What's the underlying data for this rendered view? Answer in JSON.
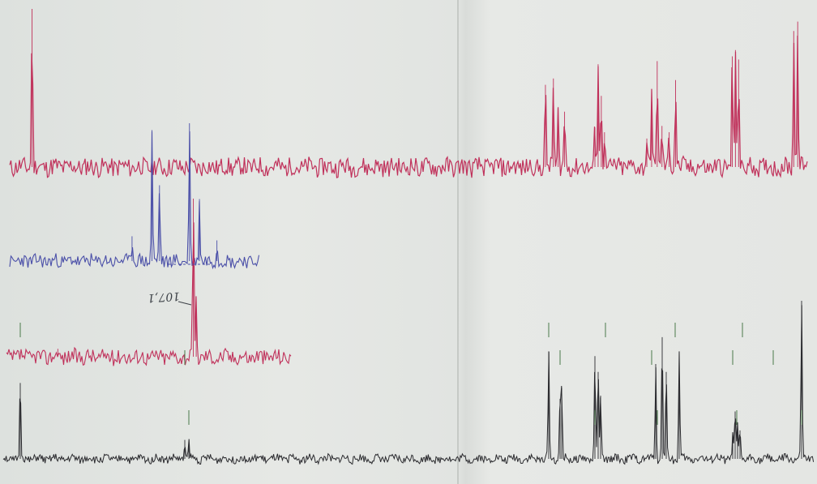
{
  "chart_data": [
    {
      "type": "line",
      "name_ref": "spectrum-top",
      "color": "#c0305a",
      "baseline": 0.0,
      "noise": 0.06,
      "x_domain": [
        0,
        1
      ],
      "peaks": [
        {
          "x": 0.028,
          "h": 1.0
        },
        {
          "x": 0.671,
          "h": 0.52
        },
        {
          "x": 0.681,
          "h": 0.56
        },
        {
          "x": 0.687,
          "h": 0.38
        },
        {
          "x": 0.695,
          "h": 0.35
        },
        {
          "x": 0.733,
          "h": 0.25
        },
        {
          "x": 0.737,
          "h": 0.65
        },
        {
          "x": 0.741,
          "h": 0.45
        },
        {
          "x": 0.745,
          "h": 0.22
        },
        {
          "x": 0.798,
          "h": 0.18
        },
        {
          "x": 0.804,
          "h": 0.49
        },
        {
          "x": 0.811,
          "h": 0.67
        },
        {
          "x": 0.817,
          "h": 0.26
        },
        {
          "x": 0.826,
          "h": 0.22
        },
        {
          "x": 0.834,
          "h": 0.55
        },
        {
          "x": 0.905,
          "h": 0.7
        },
        {
          "x": 0.909,
          "h": 0.74
        },
        {
          "x": 0.913,
          "h": 0.68
        },
        {
          "x": 0.982,
          "h": 0.86
        },
        {
          "x": 0.987,
          "h": 0.92
        }
      ]
    },
    {
      "type": "line",
      "name_ref": "spectrum-blue-expansion",
      "color": "#4a4fa8",
      "noise": 0.05,
      "peaks": [
        {
          "x": 0.57,
          "h": 0.95
        },
        {
          "x": 0.6,
          "h": 0.55
        },
        {
          "x": 0.72,
          "h": 1.0
        },
        {
          "x": 0.76,
          "h": 0.45
        },
        {
          "x": 0.49,
          "h": 0.18
        },
        {
          "x": 0.83,
          "h": 0.15
        }
      ]
    },
    {
      "type": "line",
      "name_ref": "spectrum-red-expansion",
      "color": "#c0305a",
      "noise": 0.05,
      "peaks": [
        {
          "x": 0.655,
          "h": 1.0
        },
        {
          "x": 0.665,
          "h": 0.35
        },
        {
          "x": 0.18,
          "h": 0.05
        }
      ]
    },
    {
      "type": "line",
      "name_ref": "spectrum-bottom",
      "color": "#2a2a2e",
      "noise": 0.025,
      "peaks": [
        {
          "x": 0.021,
          "h": 0.48
        },
        {
          "x": 0.224,
          "h": 0.12
        },
        {
          "x": 0.229,
          "h": 0.1
        },
        {
          "x": 0.673,
          "h": 0.68
        },
        {
          "x": 0.687,
          "h": 0.38
        },
        {
          "x": 0.689,
          "h": 0.45
        },
        {
          "x": 0.73,
          "h": 0.65
        },
        {
          "x": 0.734,
          "h": 0.55
        },
        {
          "x": 0.737,
          "h": 0.4
        },
        {
          "x": 0.805,
          "h": 0.6
        },
        {
          "x": 0.813,
          "h": 0.77
        },
        {
          "x": 0.818,
          "h": 0.55
        },
        {
          "x": 0.834,
          "h": 0.68
        },
        {
          "x": 0.9,
          "h": 0.15
        },
        {
          "x": 0.903,
          "h": 0.3
        },
        {
          "x": 0.906,
          "h": 0.22
        },
        {
          "x": 0.909,
          "h": 0.18
        },
        {
          "x": 0.985,
          "h": 1.0
        }
      ]
    },
    {
      "type": "markers",
      "name_ref": "integration-ticks",
      "color": "#4a7a4a",
      "ticks": [
        0.021,
        0.224,
        0.229,
        0.673,
        0.687,
        0.73,
        0.743,
        0.8,
        0.807,
        0.829,
        0.9,
        0.905,
        0.912,
        0.95,
        0.985
      ]
    }
  ],
  "annotation": {
    "text": "107,1"
  }
}
